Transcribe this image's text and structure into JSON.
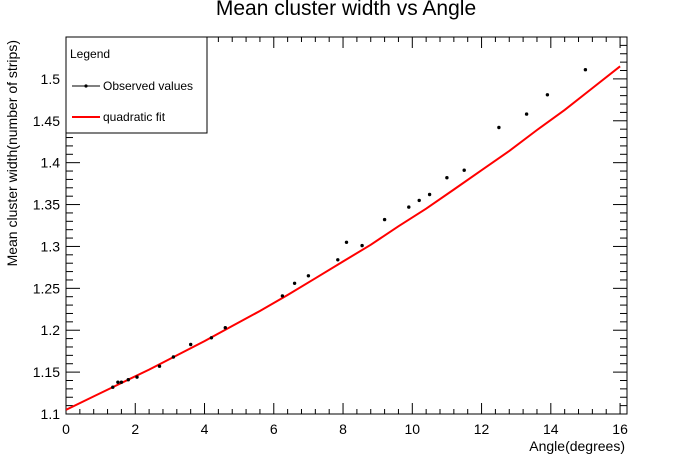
{
  "chart_data": {
    "type": "scatter",
    "title": "Mean cluster width vs Angle",
    "xlabel": "Angle(degrees)",
    "ylabel": "Mean cluster width(number of strips)",
    "xlim": [
      0,
      16.2
    ],
    "ylim": [
      1.1,
      1.55
    ],
    "x_ticks": [
      0,
      2,
      4,
      6,
      8,
      10,
      12,
      14,
      16
    ],
    "y_ticks": [
      1.1,
      1.15,
      1.2,
      1.25,
      1.3,
      1.35,
      1.4,
      1.45,
      1.5
    ],
    "x_tick_labels": [
      "0",
      "2",
      "4",
      "6",
      "8",
      "10",
      "12",
      "14",
      "16"
    ],
    "y_tick_labels": [
      "1.1",
      "1.15",
      "1.2",
      "1.25",
      "1.3",
      "1.35",
      "1.4",
      "1.45",
      "1.5"
    ],
    "grid": false,
    "legend": {
      "title": "Legend",
      "placement": "top-left",
      "entries": [
        "Observed values",
        "quadratic fit"
      ]
    },
    "series": [
      {
        "name": "Observed values",
        "kind": "points",
        "color": "#000000",
        "x": [
          1.35,
          1.5,
          1.6,
          1.8,
          2.05,
          2.7,
          3.1,
          3.6,
          4.2,
          4.6,
          6.25,
          6.6,
          7.0,
          7.85,
          8.1,
          8.55,
          9.2,
          9.9,
          10.2,
          10.5,
          11.0,
          11.5,
          12.5,
          13.3,
          13.9,
          15.0
        ],
        "y": [
          1.132,
          1.138,
          1.138,
          1.141,
          1.144,
          1.157,
          1.168,
          1.183,
          1.191,
          1.203,
          1.241,
          1.256,
          1.265,
          1.284,
          1.305,
          1.301,
          1.332,
          1.347,
          1.355,
          1.362,
          1.382,
          1.391,
          1.442,
          1.458,
          1.481,
          1.511
        ]
      },
      {
        "name": "quadratic fit",
        "kind": "curve",
        "color": "#ff0000",
        "x": [
          0.0,
          0.8,
          1.6,
          2.4,
          3.2,
          4.0,
          4.8,
          5.6,
          6.4,
          7.2,
          8.0,
          8.8,
          9.6,
          10.4,
          11.2,
          12.0,
          12.8,
          13.6,
          14.4,
          15.2,
          16.0
        ],
        "y": [
          1.105,
          1.121,
          1.137,
          1.153,
          1.17,
          1.187,
          1.205,
          1.223,
          1.242,
          1.262,
          1.282,
          1.302,
          1.324,
          1.345,
          1.368,
          1.391,
          1.414,
          1.439,
          1.463,
          1.489,
          1.515
        ]
      }
    ]
  }
}
